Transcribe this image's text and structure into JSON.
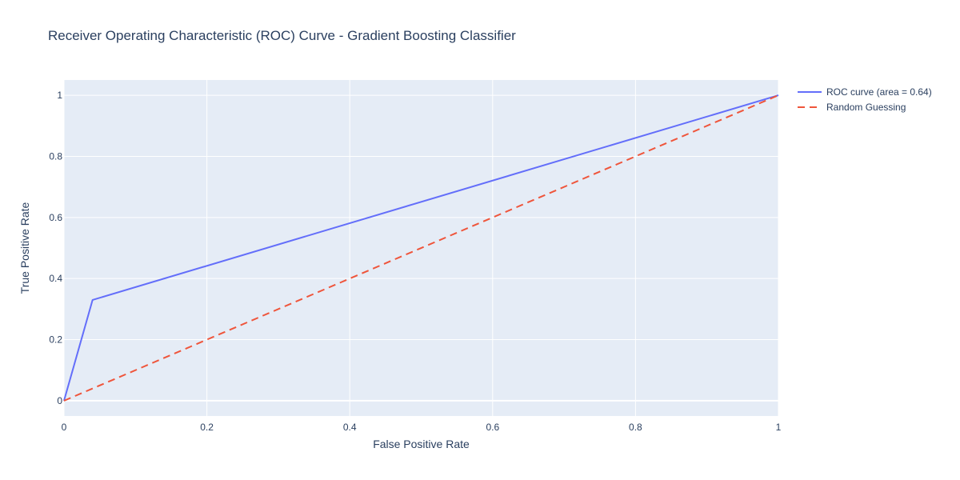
{
  "chart_data": {
    "type": "line",
    "title": "Receiver Operating Characteristic (ROC) Curve - Gradient Boosting Classifier",
    "xlabel": "False Positive Rate",
    "ylabel": "True Positive Rate",
    "xlim": [
      0,
      1
    ],
    "ylim": [
      -0.05,
      1.05
    ],
    "x_ticks": [
      "0",
      "0.2",
      "0.4",
      "0.6",
      "0.8",
      "1"
    ],
    "y_ticks": [
      "0",
      "0.2",
      "0.4",
      "0.6",
      "0.8",
      "1"
    ],
    "grid": true,
    "legend_position": "top-right-outside",
    "plot_background": "#e5ecf6",
    "series": [
      {
        "name": "ROC curve (area = 0.64)",
        "color": "#636efa",
        "dash": "solid",
        "x": [
          0,
          0.04,
          1
        ],
        "y": [
          0,
          0.33,
          1
        ]
      },
      {
        "name": "Random Guessing",
        "color": "#ef553b",
        "dash": "dash",
        "x": [
          0,
          1
        ],
        "y": [
          0,
          1
        ]
      }
    ]
  }
}
